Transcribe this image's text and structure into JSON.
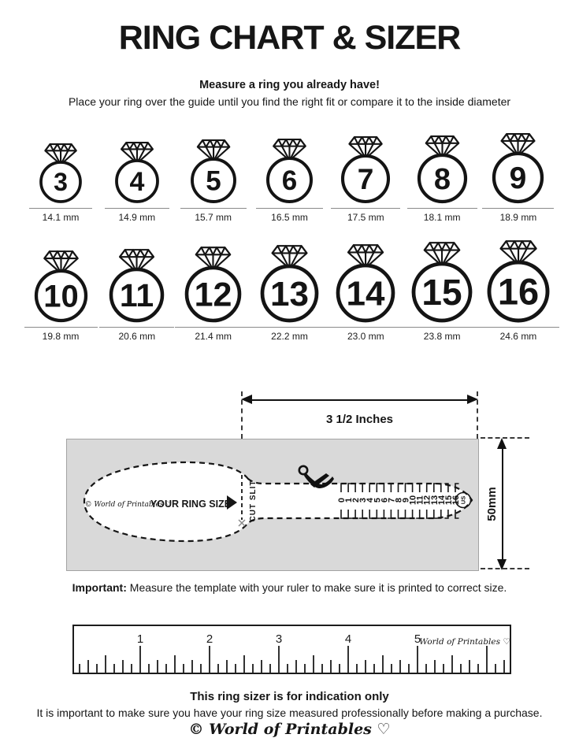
{
  "title": "RING CHART & SIZER",
  "intro": {
    "headline": "Measure a ring you already have!",
    "subline": "Place your ring over the guide until you find the right fit or compare it to the inside diameter"
  },
  "ring_chart": {
    "rows": [
      {
        "rings": [
          {
            "size": "3",
            "mm": 14.1,
            "label": "14.1 mm"
          },
          {
            "size": "4",
            "mm": 14.9,
            "label": "14.9 mm"
          },
          {
            "size": "5",
            "mm": 15.7,
            "label": "15.7 mm"
          },
          {
            "size": "6",
            "mm": 16.5,
            "label": "16.5 mm"
          },
          {
            "size": "7",
            "mm": 17.5,
            "label": "17.5 mm"
          },
          {
            "size": "8",
            "mm": 18.1,
            "label": "18.1 mm"
          },
          {
            "size": "9",
            "mm": 18.9,
            "label": "18.9 mm"
          }
        ]
      },
      {
        "rings": [
          {
            "size": "10",
            "mm": 19.8,
            "label": "19.8 mm"
          },
          {
            "size": "11",
            "mm": 20.6,
            "label": "20.6 mm"
          },
          {
            "size": "12",
            "mm": 21.4,
            "label": "21.4 mm"
          },
          {
            "size": "13",
            "mm": 22.2,
            "label": "22.2 mm"
          },
          {
            "size": "14",
            "mm": 23.0,
            "label": "23.0 mm"
          },
          {
            "size": "15",
            "mm": 23.8,
            "label": "23.8 mm"
          },
          {
            "size": "16",
            "mm": 24.6,
            "label": "24.6 mm"
          }
        ]
      }
    ]
  },
  "sizer": {
    "width_dimension_label": "3 1/2 Inches",
    "height_dimension_label": "50mm",
    "brand": "© World of Printables ♡",
    "your_ring_size_label": "YOUR RING SIZE",
    "cut_slit_label": "CUT SLIT",
    "scale_numbers": [
      "0",
      "1",
      "2",
      "3",
      "4",
      "5",
      "6",
      "7",
      "8",
      "9",
      "10",
      "11",
      "12",
      "13",
      "14",
      "15",
      "16"
    ],
    "unit_badge": "US",
    "background_color": "#d9d9d9"
  },
  "important_note": {
    "prefix": "Important:",
    "text": "Measure the template with your ruler to make sure it is printed to correct size."
  },
  "ruler": {
    "numbers": [
      "1",
      "2",
      "3",
      "4",
      "5"
    ],
    "brand": "World of Printables ♡"
  },
  "footer": {
    "headline": "This ring sizer is for indication only",
    "text": "It is important to make sure you have your ring size measured professionally before making a purchase.",
    "brand": "© World of Printables ♡"
  }
}
